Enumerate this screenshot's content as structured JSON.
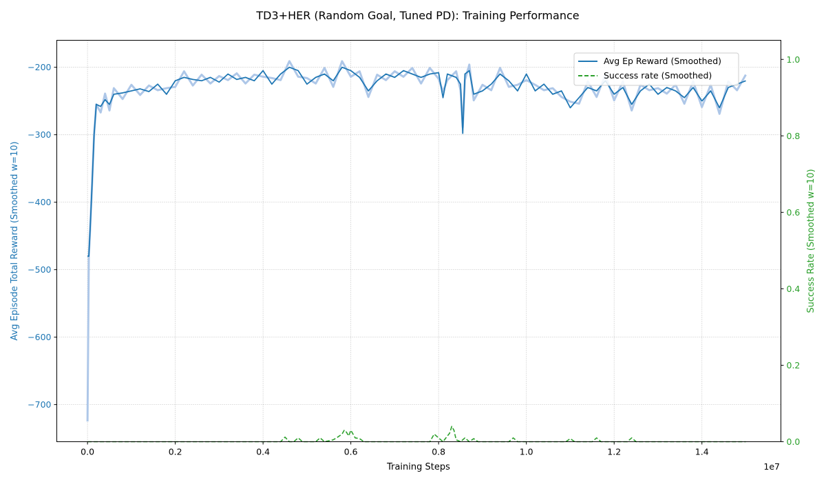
{
  "chart_data": {
    "type": "line",
    "title": "TD3+HER (Random Goal, Tuned PD): Training Performance",
    "xlabel": "Training Steps",
    "x_offset_label": "1e7",
    "ylabel_left": "Avg Episode Total Reward (Smoothed w=10)",
    "ylabel_right": "Success Rate (Smoothed w=10)",
    "xlim": [
      -0.07,
      1.58
    ],
    "ylim_left": [
      -755,
      -160
    ],
    "ylim_right": [
      0.0,
      1.05
    ],
    "x_ticks": [
      0.0,
      0.2,
      0.4,
      0.6,
      0.8,
      1.0,
      1.2,
      1.4
    ],
    "x_tick_labels": [
      "0.0",
      "0.2",
      "0.4",
      "0.6",
      "0.8",
      "1.0",
      "1.2",
      "1.4"
    ],
    "y_left_ticks": [
      -700,
      -600,
      -500,
      -400,
      -300,
      -200
    ],
    "y_left_tick_labels": [
      "−700",
      "−600",
      "−500",
      "−400",
      "−300",
      "−200"
    ],
    "y_right_ticks": [
      0.0,
      0.2,
      0.4,
      0.6,
      0.8,
      1.0
    ],
    "y_right_tick_labels": [
      "0.0",
      "0.2",
      "0.4",
      "0.6",
      "0.8",
      "1.0"
    ],
    "grid": true,
    "legend_position": "top-right",
    "colors": {
      "reward": "#1f77b4",
      "reward_raw": "#aec7e8",
      "success": "#2ca02c",
      "grid": "#b0b0b0"
    },
    "series": [
      {
        "name": "Avg Ep Reward (Smoothed)",
        "axis": "left",
        "style": "solid",
        "x": [
          0.0,
          0.003,
          0.006,
          0.01,
          0.015,
          0.02,
          0.03,
          0.04,
          0.05,
          0.06,
          0.08,
          0.1,
          0.12,
          0.14,
          0.16,
          0.18,
          0.2,
          0.22,
          0.24,
          0.26,
          0.28,
          0.3,
          0.32,
          0.34,
          0.36,
          0.38,
          0.4,
          0.42,
          0.44,
          0.46,
          0.48,
          0.5,
          0.52,
          0.54,
          0.56,
          0.58,
          0.6,
          0.62,
          0.64,
          0.66,
          0.68,
          0.7,
          0.72,
          0.74,
          0.76,
          0.78,
          0.8,
          0.81,
          0.82,
          0.84,
          0.85,
          0.855,
          0.86,
          0.87,
          0.88,
          0.9,
          0.92,
          0.94,
          0.96,
          0.98,
          1.0,
          1.02,
          1.04,
          1.06,
          1.08,
          1.1,
          1.12,
          1.14,
          1.16,
          1.18,
          1.2,
          1.22,
          1.24,
          1.26,
          1.28,
          1.3,
          1.32,
          1.34,
          1.36,
          1.38,
          1.4,
          1.42,
          1.44,
          1.46,
          1.48,
          1.5
        ],
        "y": [
          -480,
          -480,
          -440,
          -380,
          -300,
          -255,
          -258,
          -248,
          -255,
          -240,
          -238,
          -235,
          -232,
          -236,
          -225,
          -240,
          -220,
          -215,
          -218,
          -220,
          -215,
          -222,
          -210,
          -218,
          -215,
          -220,
          -205,
          -225,
          -210,
          -200,
          -205,
          -225,
          -215,
          -210,
          -220,
          -200,
          -205,
          -215,
          -235,
          -220,
          -210,
          -215,
          -205,
          -210,
          -215,
          -210,
          -208,
          -245,
          -210,
          -215,
          -225,
          -298,
          -210,
          -205,
          -240,
          -235,
          -225,
          -210,
          -220,
          -235,
          -210,
          -235,
          -225,
          -240,
          -235,
          -260,
          -245,
          -230,
          -235,
          -220,
          -240,
          -230,
          -255,
          -235,
          -225,
          -240,
          -230,
          -235,
          -245,
          -230,
          -250,
          -235,
          -260,
          -230,
          -225,
          -220
        ]
      },
      {
        "name": "Success rate (Smoothed)",
        "axis": "right",
        "style": "dashed",
        "x": [
          0.0,
          0.44,
          0.45,
          0.46,
          0.47,
          0.48,
          0.49,
          0.5,
          0.52,
          0.53,
          0.54,
          0.56,
          0.57,
          0.58,
          0.585,
          0.59,
          0.595,
          0.6,
          0.605,
          0.61,
          0.62,
          0.63,
          0.64,
          0.78,
          0.79,
          0.8,
          0.81,
          0.82,
          0.825,
          0.83,
          0.835,
          0.84,
          0.85,
          0.86,
          0.87,
          0.88,
          0.89,
          0.96,
          0.97,
          0.98,
          1.09,
          1.1,
          1.11,
          1.15,
          1.16,
          1.17,
          1.23,
          1.24,
          1.25,
          1.5
        ],
        "y": [
          0.0,
          0.0,
          0.012,
          0.0,
          0.0,
          0.01,
          0.0,
          0.0,
          0.0,
          0.01,
          0.0,
          0.005,
          0.012,
          0.02,
          0.03,
          0.025,
          0.015,
          0.03,
          0.02,
          0.01,
          0.008,
          0.0,
          0.0,
          0.0,
          0.02,
          0.01,
          0.0,
          0.015,
          0.022,
          0.04,
          0.03,
          0.005,
          0.0,
          0.01,
          0.0,
          0.008,
          0.0,
          0.0,
          0.01,
          0.0,
          0.0,
          0.008,
          0.0,
          0.0,
          0.01,
          0.0,
          0.0,
          0.01,
          0.0,
          0.0
        ]
      }
    ]
  }
}
